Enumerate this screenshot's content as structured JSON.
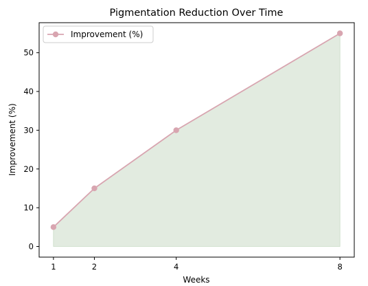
{
  "chart_data": {
    "type": "area",
    "title": "Pigmentation Reduction Over Time",
    "xlabel": "Weeks",
    "ylabel": "Improvement (%)",
    "x": [
      1,
      2,
      4,
      8
    ],
    "xticks": [
      1,
      2,
      4,
      8
    ],
    "yticks": [
      0,
      10,
      20,
      30,
      40,
      50
    ],
    "xlim": [
      0.65,
      8.35
    ],
    "ylim": [
      -2.75,
      57.75
    ],
    "series": [
      {
        "name": "Improvement (%)",
        "values": [
          5,
          15,
          30,
          55
        ]
      }
    ],
    "legend_position": "top-left",
    "grid": false,
    "colors": {
      "line": "#d8a5b0",
      "marker": "#d8a5b0",
      "fill": "#e2ebe0",
      "fill_edge": "#c9dcc6",
      "axes": "#000000"
    }
  }
}
